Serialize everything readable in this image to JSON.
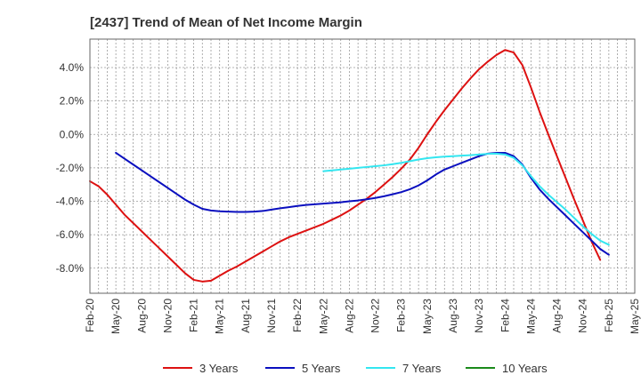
{
  "chart_data": {
    "type": "line",
    "title": "[2437]  Trend of Mean of Net Income Margin",
    "xlabel": "",
    "ylabel": "",
    "x_tick_labels": [
      "Feb-20",
      "May-20",
      "Aug-20",
      "Nov-20",
      "Feb-21",
      "May-21",
      "Aug-21",
      "Nov-21",
      "Feb-22",
      "May-22",
      "Aug-22",
      "Nov-22",
      "Feb-23",
      "May-23",
      "Aug-23",
      "Nov-23",
      "Feb-24",
      "May-24",
      "Aug-24",
      "Nov-24",
      "Feb-25",
      "May-25"
    ],
    "y_tick_labels": [
      "4.0%",
      "2.0%",
      "0.0%",
      "-2.0%",
      "-4.0%",
      "-6.0%",
      "-8.0%"
    ],
    "y_tick_values": [
      4,
      2,
      0,
      -2,
      -4,
      -6,
      -8
    ],
    "ylim": [
      -9.5,
      5.7
    ],
    "x_range_months": [
      "2020-02",
      "2025-05"
    ],
    "grid": true,
    "legend_position": "bottom",
    "series": [
      {
        "name": "3 Years",
        "color": "#dd1111",
        "points": [
          [
            "2020-02",
            -2.8
          ],
          [
            "2020-03",
            -3.1
          ],
          [
            "2020-04",
            -3.6
          ],
          [
            "2020-05",
            -4.2
          ],
          [
            "2020-06",
            -4.8
          ],
          [
            "2020-07",
            -5.3
          ],
          [
            "2020-08",
            -5.8
          ],
          [
            "2020-09",
            -6.3
          ],
          [
            "2020-10",
            -6.8
          ],
          [
            "2020-11",
            -7.3
          ],
          [
            "2020-12",
            -7.8
          ],
          [
            "2021-01",
            -8.3
          ],
          [
            "2021-02",
            -8.7
          ],
          [
            "2021-03",
            -8.8
          ],
          [
            "2021-04",
            -8.75
          ],
          [
            "2021-05",
            -8.45
          ],
          [
            "2021-06",
            -8.15
          ],
          [
            "2021-07",
            -7.9
          ],
          [
            "2021-08",
            -7.6
          ],
          [
            "2021-09",
            -7.3
          ],
          [
            "2021-10",
            -7.0
          ],
          [
            "2021-11",
            -6.7
          ],
          [
            "2021-12",
            -6.4
          ],
          [
            "2022-01",
            -6.15
          ],
          [
            "2022-02",
            -5.95
          ],
          [
            "2022-03",
            -5.75
          ],
          [
            "2022-04",
            -5.55
          ],
          [
            "2022-05",
            -5.35
          ],
          [
            "2022-06",
            -5.1
          ],
          [
            "2022-07",
            -4.85
          ],
          [
            "2022-08",
            -4.55
          ],
          [
            "2022-09",
            -4.2
          ],
          [
            "2022-10",
            -3.85
          ],
          [
            "2022-11",
            -3.45
          ],
          [
            "2022-12",
            -3.0
          ],
          [
            "2023-01",
            -2.55
          ],
          [
            "2023-02",
            -2.05
          ],
          [
            "2023-03",
            -1.5
          ],
          [
            "2023-04",
            -0.8
          ],
          [
            "2023-05",
            0.0
          ],
          [
            "2023-06",
            0.75
          ],
          [
            "2023-07",
            1.45
          ],
          [
            "2023-08",
            2.1
          ],
          [
            "2023-09",
            2.75
          ],
          [
            "2023-10",
            3.35
          ],
          [
            "2023-11",
            3.9
          ],
          [
            "2023-12",
            4.35
          ],
          [
            "2024-01",
            4.75
          ],
          [
            "2024-02",
            5.05
          ],
          [
            "2024-03",
            4.9
          ],
          [
            "2024-04",
            4.15
          ],
          [
            "2024-05",
            2.8
          ],
          [
            "2024-06",
            1.35
          ],
          [
            "2024-07",
            0.0
          ],
          [
            "2024-08",
            -1.3
          ],
          [
            "2024-09",
            -2.6
          ],
          [
            "2024-10",
            -3.9
          ],
          [
            "2024-11",
            -5.15
          ],
          [
            "2024-12",
            -6.4
          ],
          [
            "2025-01",
            -7.5
          ]
        ]
      },
      {
        "name": "5 Years",
        "color": "#0a0fbf",
        "points": [
          [
            "2020-05",
            -1.1
          ],
          [
            "2020-06",
            -1.45
          ],
          [
            "2020-07",
            -1.8
          ],
          [
            "2020-08",
            -2.15
          ],
          [
            "2020-09",
            -2.5
          ],
          [
            "2020-10",
            -2.85
          ],
          [
            "2020-11",
            -3.2
          ],
          [
            "2020-12",
            -3.55
          ],
          [
            "2021-01",
            -3.9
          ],
          [
            "2021-02",
            -4.2
          ],
          [
            "2021-03",
            -4.45
          ],
          [
            "2021-04",
            -4.55
          ],
          [
            "2021-05",
            -4.6
          ],
          [
            "2021-06",
            -4.62
          ],
          [
            "2021-07",
            -4.64
          ],
          [
            "2021-08",
            -4.64
          ],
          [
            "2021-09",
            -4.62
          ],
          [
            "2021-10",
            -4.58
          ],
          [
            "2021-11",
            -4.5
          ],
          [
            "2021-12",
            -4.42
          ],
          [
            "2022-01",
            -4.35
          ],
          [
            "2022-02",
            -4.28
          ],
          [
            "2022-03",
            -4.22
          ],
          [
            "2022-04",
            -4.18
          ],
          [
            "2022-05",
            -4.14
          ],
          [
            "2022-06",
            -4.1
          ],
          [
            "2022-07",
            -4.06
          ],
          [
            "2022-08",
            -4.0
          ],
          [
            "2022-09",
            -3.95
          ],
          [
            "2022-10",
            -3.88
          ],
          [
            "2022-11",
            -3.8
          ],
          [
            "2022-12",
            -3.7
          ],
          [
            "2023-01",
            -3.58
          ],
          [
            "2023-02",
            -3.45
          ],
          [
            "2023-03",
            -3.28
          ],
          [
            "2023-04",
            -3.05
          ],
          [
            "2023-05",
            -2.75
          ],
          [
            "2023-06",
            -2.4
          ],
          [
            "2023-07",
            -2.1
          ],
          [
            "2023-08",
            -1.9
          ],
          [
            "2023-09",
            -1.7
          ],
          [
            "2023-10",
            -1.5
          ],
          [
            "2023-11",
            -1.3
          ],
          [
            "2023-12",
            -1.15
          ],
          [
            "2024-01",
            -1.1
          ],
          [
            "2024-02",
            -1.1
          ],
          [
            "2024-03",
            -1.3
          ],
          [
            "2024-04",
            -1.8
          ],
          [
            "2024-05",
            -2.6
          ],
          [
            "2024-06",
            -3.3
          ],
          [
            "2024-07",
            -3.85
          ],
          [
            "2024-08",
            -4.35
          ],
          [
            "2024-09",
            -4.85
          ],
          [
            "2024-10",
            -5.35
          ],
          [
            "2024-11",
            -5.85
          ],
          [
            "2024-12",
            -6.35
          ],
          [
            "2025-01",
            -6.85
          ],
          [
            "2025-02",
            -7.2
          ]
        ]
      },
      {
        "name": "7 Years",
        "color": "#33e6f0",
        "points": [
          [
            "2022-05",
            -2.2
          ],
          [
            "2022-06",
            -2.15
          ],
          [
            "2022-07",
            -2.1
          ],
          [
            "2022-08",
            -2.05
          ],
          [
            "2022-09",
            -2.0
          ],
          [
            "2022-10",
            -1.95
          ],
          [
            "2022-11",
            -1.9
          ],
          [
            "2022-12",
            -1.85
          ],
          [
            "2023-01",
            -1.78
          ],
          [
            "2023-02",
            -1.7
          ],
          [
            "2023-03",
            -1.6
          ],
          [
            "2023-04",
            -1.5
          ],
          [
            "2023-05",
            -1.42
          ],
          [
            "2023-06",
            -1.37
          ],
          [
            "2023-07",
            -1.33
          ],
          [
            "2023-08",
            -1.3
          ],
          [
            "2023-09",
            -1.27
          ],
          [
            "2023-10",
            -1.24
          ],
          [
            "2023-11",
            -1.2
          ],
          [
            "2023-12",
            -1.16
          ],
          [
            "2024-01",
            -1.15
          ],
          [
            "2024-02",
            -1.2
          ],
          [
            "2024-03",
            -1.4
          ],
          [
            "2024-04",
            -1.85
          ],
          [
            "2024-05",
            -2.5
          ],
          [
            "2024-06",
            -3.1
          ],
          [
            "2024-07",
            -3.6
          ],
          [
            "2024-08",
            -4.05
          ],
          [
            "2024-09",
            -4.5
          ],
          [
            "2024-10",
            -5.0
          ],
          [
            "2024-11",
            -5.5
          ],
          [
            "2024-12",
            -5.95
          ],
          [
            "2025-01",
            -6.35
          ],
          [
            "2025-02",
            -6.6
          ]
        ]
      },
      {
        "name": "10 Years",
        "color": "#1a8a1a",
        "points": []
      }
    ]
  }
}
